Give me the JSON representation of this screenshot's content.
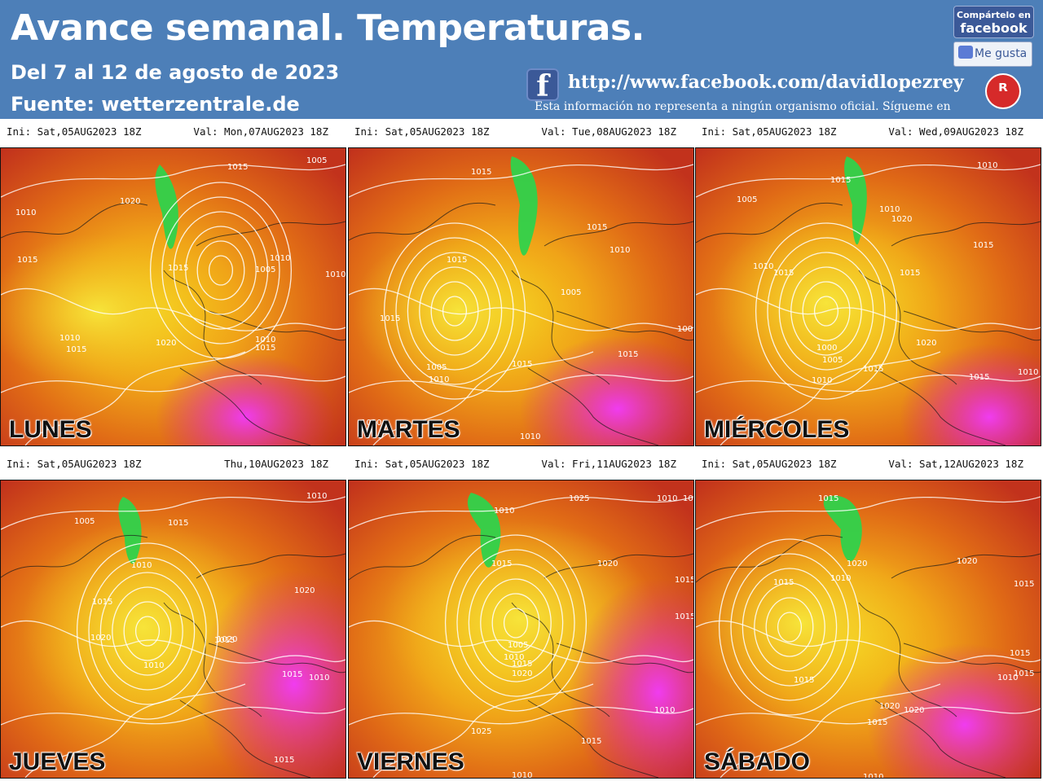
{
  "header": {
    "title": "Avance semanal. Temperaturas.",
    "subtitle": "Del 7 al 12 de agosto de 2023",
    "source": "Fuente: wetterzentrale.de",
    "facebook_url": "http://www.facebook.com/davidlopezrey",
    "disclaimer": "Esta información no representa a ningún organismo oficial. Sígueme en",
    "share_line1": "Compártelo en",
    "share_line2": "facebook",
    "like_label": "Me gusta",
    "logo_glyph": "ᴿ"
  },
  "colors": {
    "header_bg": "#4d7fb8",
    "map_hot_red": "#c2321c",
    "map_orange": "#e8761a",
    "map_yellow": "#f2c21a",
    "map_magenta": "#e52ee0",
    "map_green": "#2ed14a",
    "isobar": "#ffffff"
  },
  "panels": [
    {
      "ini": "Ini: Sat,05AUG2023  18Z",
      "val": "Val: Mon,07AUG2023  18Z",
      "day": "LUNES",
      "isobars": [
        "1005",
        "1015",
        "1020",
        "1010",
        "1015",
        "1015",
        "1005",
        "1010",
        "1010",
        "1020",
        "1010",
        "1015",
        "1010",
        "1015"
      ]
    },
    {
      "ini": "Ini: Sat,05AUG2023  18Z",
      "val": "Val: Tue,08AUG2023  18Z",
      "day": "MARTES",
      "isobars": [
        "1015",
        "1015",
        "1015",
        "1010",
        "1005",
        "1015",
        "1005",
        "1010",
        "1015",
        "1020",
        "1010",
        "1015",
        "1005"
      ]
    },
    {
      "ini": "Ini: Sat,05AUG2023  18Z",
      "val": "Val: Wed,09AUG2023  18Z",
      "day": "MIÉRCOLES",
      "isobars": [
        "1010",
        "1015",
        "1005",
        "1010",
        "1020",
        "1015",
        "1010",
        "1015",
        "1015",
        "1000",
        "1005",
        "1010",
        "1015",
        "1020",
        "1015",
        "1010"
      ]
    },
    {
      "ini": "Ini: Sat,05AUG2023  18Z",
      "val": "Thu,10AUG2023  18Z",
      "day": "JUEVES",
      "isobars": [
        "1010",
        "1005",
        "1015",
        "1010",
        "1015",
        "1020",
        "1020",
        "1015",
        "1010",
        "1020",
        "1015",
        "1010",
        "1015"
      ]
    },
    {
      "ini": "Ini: Sat,05AUG2023  18Z",
      "val": "Val: Fri,11AUG2023  18Z",
      "day": "VIERNES",
      "isobars": [
        "1025",
        "1010",
        "1010",
        "1010",
        "1015",
        "1020",
        "1015",
        "1015",
        "1005",
        "1010",
        "1015",
        "1020",
        "1010",
        "1025",
        "1015",
        "1010",
        "1015"
      ]
    },
    {
      "ini": "Ini: Sat,05AUG2023  18Z",
      "val": "Val: Sat,12AUG2023  18Z",
      "day": "SÁBADO",
      "isobars": [
        "1015",
        "1020",
        "1010",
        "1015",
        "1020",
        "1015",
        "1015",
        "1020",
        "1015",
        "1010",
        "1015",
        "1020",
        "1015",
        "1010"
      ]
    }
  ]
}
